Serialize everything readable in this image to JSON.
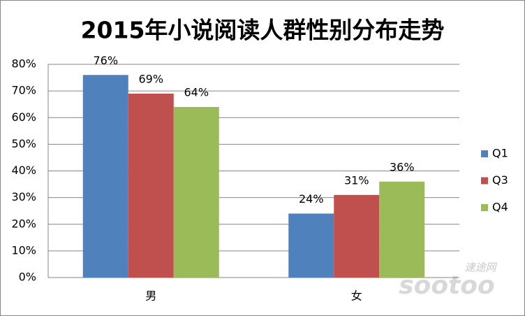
{
  "chart_data": {
    "type": "bar",
    "title": "2015年小说阅读人群性别分布走势",
    "categories": [
      "男",
      "女"
    ],
    "series": [
      {
        "name": "Q1",
        "color": "#4f81bd",
        "values": [
          76,
          24
        ],
        "value_labels": [
          "76%",
          "24%"
        ]
      },
      {
        "name": "Q3",
        "color": "#c0504d",
        "values": [
          69,
          31
        ],
        "value_labels": [
          "69%",
          "31%"
        ]
      },
      {
        "name": "Q4",
        "color": "#9bbb59",
        "values": [
          64,
          36
        ],
        "value_labels": [
          "64%",
          "36%"
        ]
      }
    ],
    "ylim": [
      0,
      80
    ],
    "yticks": [
      {
        "value": 0,
        "label": "0%"
      },
      {
        "value": 10,
        "label": "10%"
      },
      {
        "value": 20,
        "label": "20%"
      },
      {
        "value": 30,
        "label": "30%"
      },
      {
        "value": 40,
        "label": "40%"
      },
      {
        "value": 50,
        "label": "50%"
      },
      {
        "value": 60,
        "label": "60%"
      },
      {
        "value": 70,
        "label": "70%"
      },
      {
        "value": 80,
        "label": "80%"
      }
    ],
    "grid": true,
    "legend": "right",
    "watermark": "速途网",
    "watermark_logo": "sootoo"
  }
}
